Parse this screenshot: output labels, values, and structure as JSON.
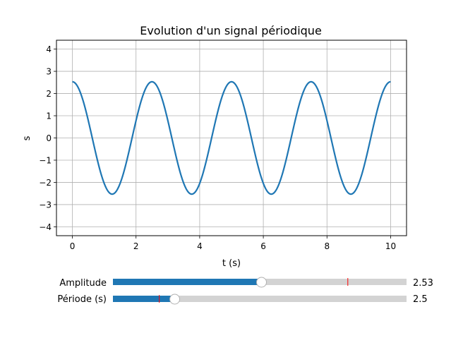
{
  "chart_data": {
    "type": "line",
    "title": "Evolution d'un signal périodique",
    "xlabel": "t (s)",
    "ylabel": "s",
    "xlim": [
      -0.5,
      10.5
    ],
    "ylim": [
      -4.4,
      4.4
    ],
    "xticks": [
      0,
      2,
      4,
      6,
      8,
      10
    ],
    "xtick_labels": [
      "0",
      "2",
      "4",
      "6",
      "8",
      "10"
    ],
    "yticks": [
      -4,
      -3,
      -2,
      -1,
      0,
      1,
      2,
      3,
      4
    ],
    "ytick_labels": [
      "−4",
      "−3",
      "−2",
      "−1",
      "0",
      "1",
      "2",
      "3",
      "4"
    ],
    "grid": true,
    "color": "#1f77b4",
    "series": [
      {
        "function": "amplitude*cos(2*pi*t/period)",
        "amplitude": 2.53,
        "period": 2.5,
        "t_range": [
          0,
          10
        ]
      }
    ]
  },
  "sliders": [
    {
      "label": "Amplitude",
      "value": 2.53,
      "value_text": "2.53",
      "min": 0,
      "max": 5,
      "initial": 4
    },
    {
      "label": "Période (s)",
      "value": 2.5,
      "value_text": "2.5",
      "min": 0.5,
      "max": 10,
      "initial": 2
    }
  ],
  "colors": {
    "fill": "#1f77b4",
    "track": "#d3d3d3",
    "initial_marker": "#ff0000",
    "grid": "#b0b0b0"
  }
}
